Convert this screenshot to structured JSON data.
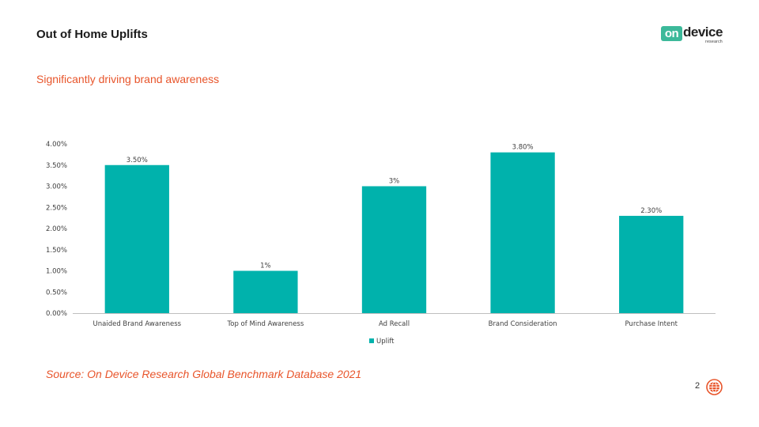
{
  "slide": {
    "title": "Out of Home Uplifts",
    "subtitle": "Significantly driving brand awareness",
    "source": "Source: On Device Research Global Benchmark Database 2021",
    "page_number": "2"
  },
  "logo": {
    "box_text": "on",
    "word": "device",
    "sub": "research"
  },
  "colors": {
    "bar": "#00b2ac",
    "accent": "#e8552b",
    "logo_green": "#3cb99a"
  },
  "chart_data": {
    "type": "bar",
    "categories": [
      "Unaided Brand Awareness",
      "Top of Mind Awareness",
      "Ad Recall",
      "Brand Consideration",
      "Purchase Intent"
    ],
    "series": [
      {
        "name": "Uplift",
        "values": [
          3.5,
          1,
          3,
          3.8,
          2.3
        ],
        "labels": [
          "3.50%",
          "1%",
          "3%",
          "3.80%",
          "2.30%"
        ]
      }
    ],
    "ylim": [
      0,
      4
    ],
    "yticks": [
      "0.00%",
      "0.50%",
      "1.00%",
      "1.50%",
      "2.00%",
      "2.50%",
      "3.00%",
      "3.50%",
      "4.00%"
    ],
    "grid": false,
    "legend": "bottom"
  }
}
